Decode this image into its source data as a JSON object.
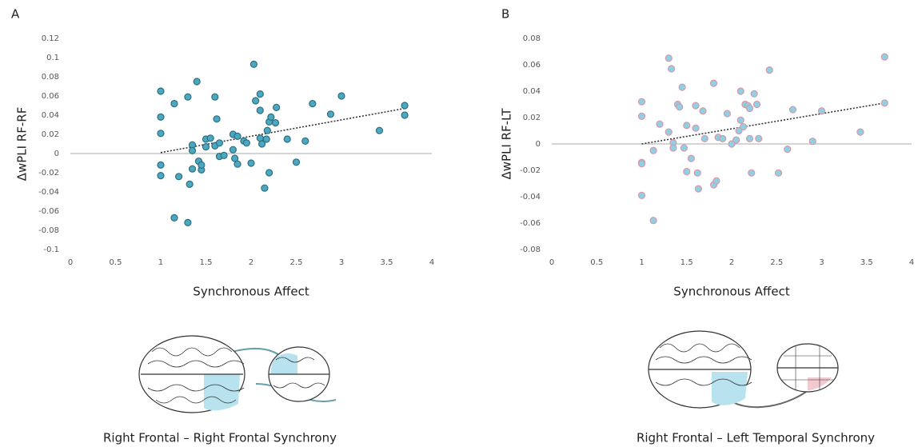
{
  "chart_data": [
    {
      "type": "scatter",
      "panel": "A",
      "xlabel": "Synchronous Affect",
      "ylabel": "ΔwPLI  RF-RF",
      "caption": "Right Frontal – Right Frontal Synchrony",
      "color": "#4aa8c0",
      "edgecolor": "#2f6f80",
      "xlim": [
        0,
        4
      ],
      "xticks": [
        0,
        0.5,
        1,
        1.5,
        2,
        2.5,
        3,
        3.5,
        4
      ],
      "ylim": [
        -0.1,
        0.12
      ],
      "yticks": [
        -0.1,
        -0.08,
        -0.06,
        -0.04,
        -0.02,
        0,
        0.02,
        0.04,
        0.06,
        0.08,
        0.1,
        0.12
      ],
      "x": [
        1.0,
        1.0,
        1.0,
        1.0,
        1.0,
        1.15,
        1.15,
        1.2,
        1.3,
        1.3,
        1.32,
        1.35,
        1.35,
        1.35,
        1.4,
        1.42,
        1.45,
        1.45,
        1.5,
        1.5,
        1.55,
        1.6,
        1.6,
        1.62,
        1.65,
        1.65,
        1.7,
        1.8,
        1.8,
        1.82,
        1.85,
        1.85,
        1.92,
        1.95,
        2.0,
        2.03,
        2.05,
        2.1,
        2.1,
        2.1,
        2.12,
        2.15,
        2.17,
        2.18,
        2.2,
        2.2,
        2.22,
        2.27,
        2.28,
        2.4,
        2.5,
        2.6,
        2.68,
        2.88,
        3.0,
        3.42,
        3.7,
        3.7
      ],
      "values": [
        0.065,
        0.038,
        0.021,
        -0.012,
        -0.023,
        -0.067,
        0.052,
        -0.024,
        0.059,
        -0.072,
        -0.032,
        0.009,
        0.003,
        -0.016,
        0.075,
        -0.008,
        -0.017,
        -0.012,
        0.015,
        0.007,
        0.016,
        0.059,
        0.008,
        0.036,
        -0.003,
        0.011,
        -0.002,
        0.02,
        0.004,
        -0.005,
        -0.011,
        0.018,
        0.013,
        0.011,
        -0.01,
        0.093,
        0.055,
        0.062,
        0.045,
        0.016,
        0.01,
        -0.036,
        0.015,
        0.024,
        -0.02,
        0.033,
        0.038,
        0.032,
        0.048,
        0.015,
        -0.009,
        0.013,
        0.052,
        0.041,
        0.06,
        0.024,
        0.05,
        0.04
      ],
      "trend_x": [
        1,
        3.7
      ],
      "trend_y": [
        0.001,
        0.047
      ]
    },
    {
      "type": "scatter",
      "panel": "B",
      "xlabel": "Synchronous Affect",
      "ylabel": "ΔwPLI  RF-LT",
      "caption": "Right Frontal – Left Temporal Synchrony",
      "color": "#8fd0e6",
      "edgecolor": "#d69aa6",
      "xlim": [
        0,
        4
      ],
      "xticks": [
        0,
        0.5,
        1,
        1.5,
        2,
        2.5,
        3,
        3.5,
        4
      ],
      "ylim": [
        -0.08,
        0.08
      ],
      "yticks": [
        -0.08,
        -0.06,
        -0.04,
        -0.02,
        0,
        0.02,
        0.04,
        0.06,
        0.08
      ],
      "x": [
        1.0,
        1.0,
        1.0,
        1.0,
        1.0,
        1.13,
        1.13,
        1.2,
        1.3,
        1.3,
        1.33,
        1.35,
        1.35,
        1.4,
        1.42,
        1.45,
        1.47,
        1.5,
        1.5,
        1.55,
        1.6,
        1.6,
        1.62,
        1.63,
        1.68,
        1.7,
        1.8,
        1.8,
        1.83,
        1.85,
        1.9,
        1.95,
        2.0,
        2.05,
        2.08,
        2.1,
        2.1,
        2.13,
        2.15,
        2.18,
        2.2,
        2.2,
        2.22,
        2.25,
        2.28,
        2.3,
        2.42,
        2.52,
        2.62,
        2.68,
        2.9,
        3.0,
        3.43,
        3.7,
        3.7
      ],
      "values": [
        0.032,
        0.021,
        -0.014,
        -0.015,
        -0.039,
        -0.058,
        -0.005,
        0.015,
        0.065,
        0.009,
        0.057,
        0.001,
        -0.003,
        0.03,
        0.028,
        0.043,
        -0.003,
        0.014,
        -0.021,
        -0.011,
        0.029,
        0.012,
        -0.022,
        -0.034,
        0.025,
        0.004,
        0.046,
        -0.031,
        -0.028,
        0.005,
        0.004,
        0.023,
        0,
        0.003,
        0.01,
        0.04,
        0.018,
        0.013,
        0.03,
        0.029,
        0.027,
        0.004,
        -0.022,
        0.038,
        0.03,
        0.004,
        0.056,
        -0.022,
        -0.004,
        0.026,
        0.002,
        0.025,
        0.009,
        0.066,
        0.031
      ],
      "trend_x": [
        1,
        3.7
      ],
      "trend_y": [
        0,
        0.031
      ]
    }
  ]
}
